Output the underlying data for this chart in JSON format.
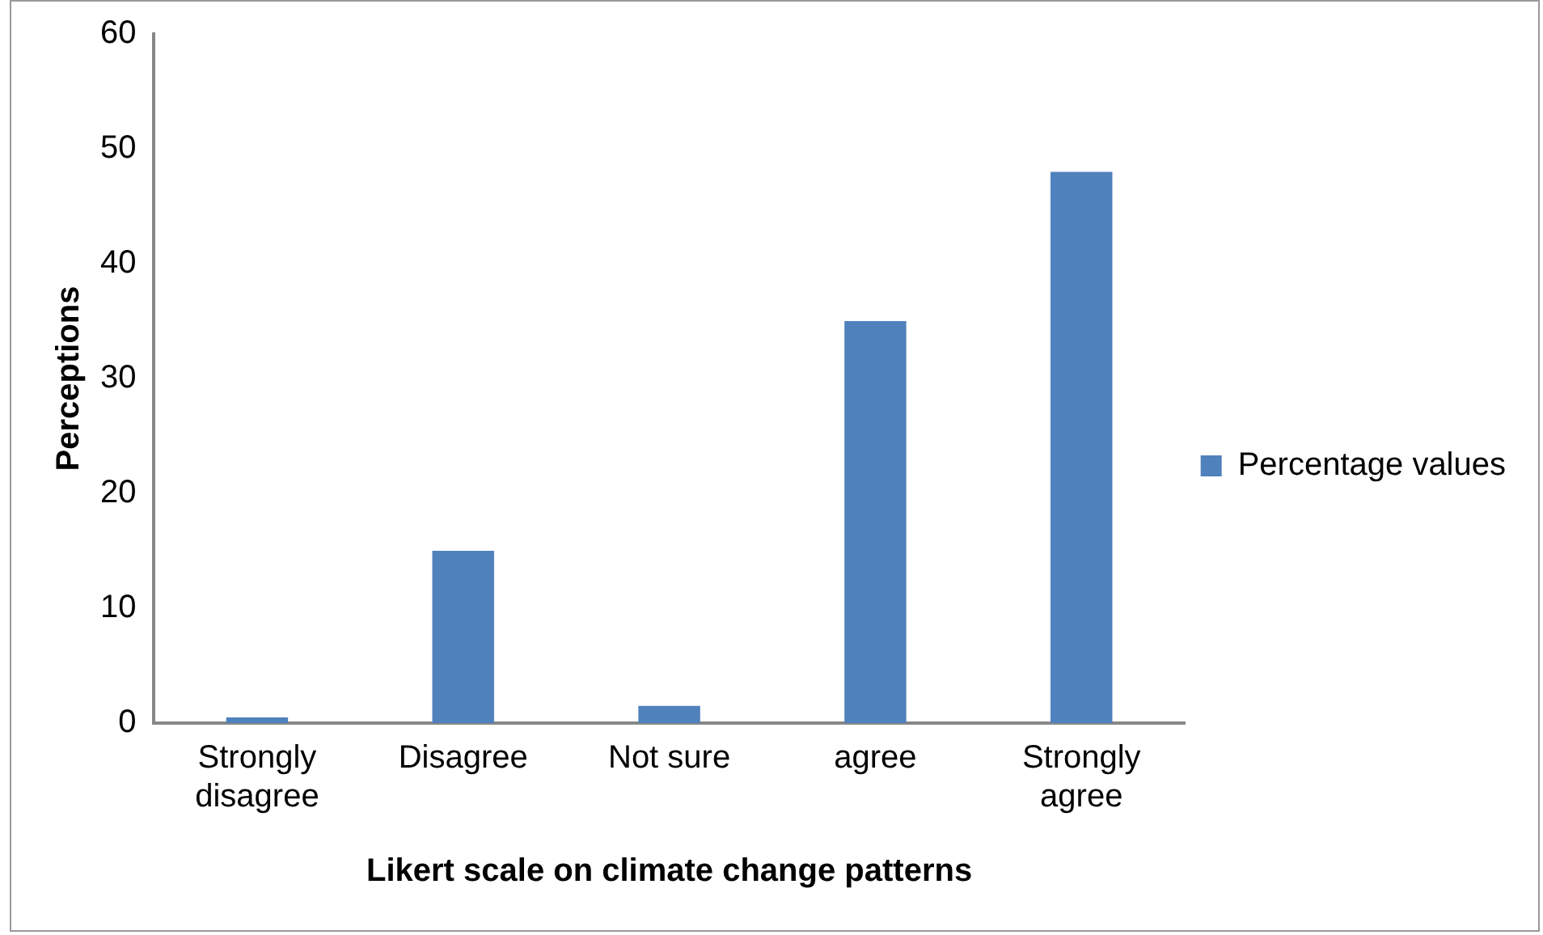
{
  "chart_data": {
    "type": "bar",
    "xlabel": "Likert scale on climate change patterns",
    "ylabel": "Perceptions",
    "categories": [
      [
        "Strongly",
        "disagree"
      ],
      "Disagree",
      "Not sure",
      "agree",
      [
        "Strongly",
        "agree"
      ]
    ],
    "series": [
      {
        "name": "Percentage values",
        "color": "#4f81bd",
        "values": [
          0.5,
          15,
          1.5,
          35,
          48
        ]
      }
    ],
    "ylim": [
      0,
      60
    ],
    "yticks": [
      0,
      10,
      20,
      30,
      40,
      50,
      60
    ],
    "grid": false,
    "legend": "right"
  }
}
